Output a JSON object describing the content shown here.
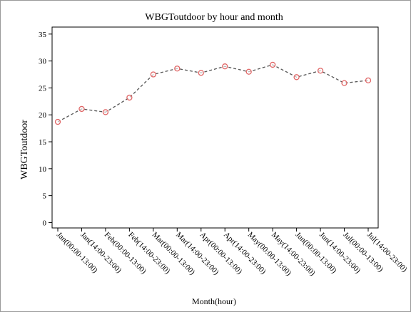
{
  "chart_data": {
    "type": "line",
    "title": "WBGToutdoor by hour and month",
    "x_label": "Month(hour)",
    "y_label": "WBGToutdoor",
    "categories": [
      "Jan(00:00-13:00)",
      "Jan(14:00-23:00)",
      "Feb(00:00-13:00)",
      "Feb(14:00-23:00)",
      "Mar(00:00-13:00)",
      "Mar(14:00-23:00)",
      "Apr(00:00-13:00)",
      "Apr(14:00-23:00)",
      "May(00:00-13:00)",
      "May(14:00-23:00)",
      "Jun(00:00-13:00)",
      "Jun(14:00-23:00)",
      "Jul(00:00-13:00)",
      "Jul(14:00-23:00)"
    ],
    "values": [
      18.7,
      21.1,
      20.5,
      23.2,
      27.5,
      28.6,
      27.8,
      29.0,
      28.0,
      29.3,
      27.0,
      28.2,
      25.9,
      26.4
    ],
    "color": "#e06666",
    "line_color": "#555555",
    "ylim": [
      -1,
      36.3
    ],
    "yticks": [
      0,
      5,
      10,
      15,
      20,
      25,
      30,
      35
    ]
  }
}
